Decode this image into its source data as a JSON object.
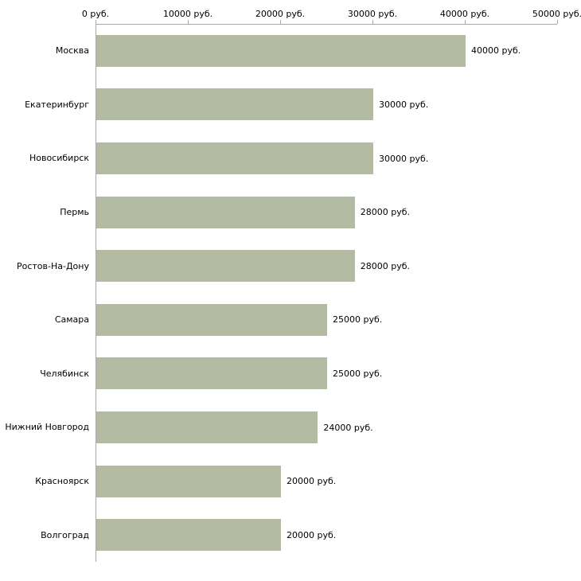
{
  "chart_data": {
    "type": "bar",
    "orientation": "horizontal",
    "title": "",
    "xlabel": "",
    "ylabel": "",
    "xlim": [
      0,
      50000
    ],
    "grid": false,
    "legend": false,
    "bar_color": "#b4bba3",
    "axis_color": "#a8a8a8",
    "text_color": "#000000",
    "x_ticks": [
      {
        "value": 0,
        "label": "0 руб."
      },
      {
        "value": 10000,
        "label": "10000 руб."
      },
      {
        "value": 20000,
        "label": "20000 руб."
      },
      {
        "value": 30000,
        "label": "30000 руб."
      },
      {
        "value": 40000,
        "label": "40000 руб."
      },
      {
        "value": 50000,
        "label": "50000 руб."
      }
    ],
    "categories": [
      "Москва",
      "Екатеринбург",
      "Новосибирск",
      "Пермь",
      "Ростов-На-Дону",
      "Самара",
      "Челябинск",
      "Нижний Новгород",
      "Красноярск",
      "Волгоград"
    ],
    "values": [
      40000,
      30000,
      30000,
      28000,
      28000,
      25000,
      25000,
      24000,
      20000,
      20000
    ],
    "value_labels": [
      "40000 руб.",
      "30000 руб.",
      "30000 руб.",
      "28000 руб.",
      "28000 руб.",
      "25000 руб.",
      "25000 руб.",
      "24000 руб.",
      "20000 руб.",
      "20000 руб."
    ]
  }
}
